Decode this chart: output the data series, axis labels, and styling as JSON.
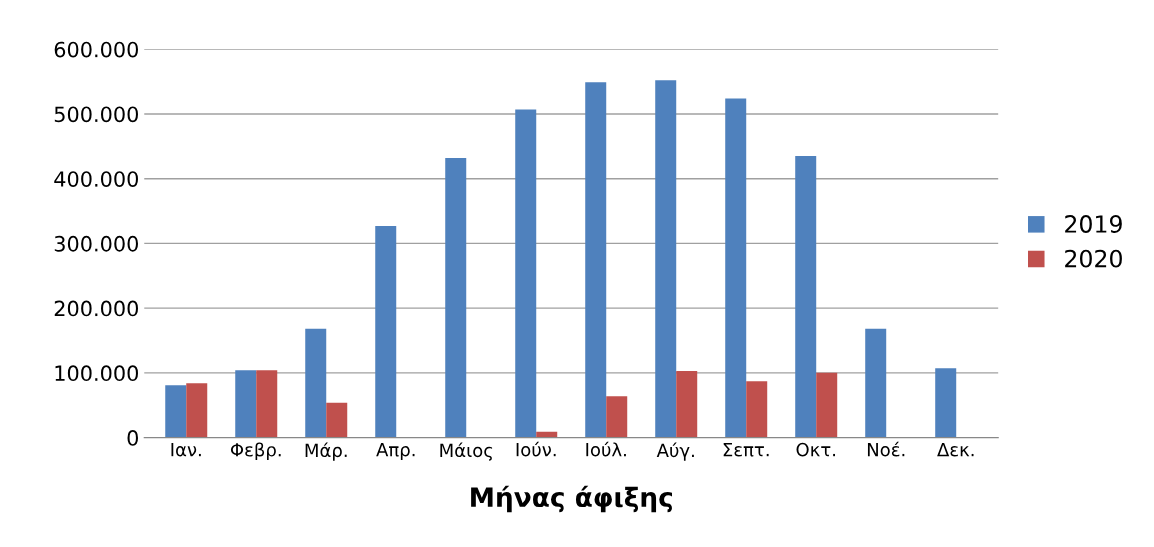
{
  "chart_data": {
    "type": "bar",
    "xlabel": "Μήνας άφιξης",
    "categories": [
      "Ιαν.",
      "Φεβρ.",
      "Μάρ.",
      "Απρ.",
      "Μάιος",
      "Ιούν.",
      "Ιούλ.",
      "Αύγ.",
      "Σεπτ.",
      "Οκτ.",
      "Νοέ.",
      "Δεκ."
    ],
    "series": [
      {
        "name": "2019",
        "color": "#4f81bd",
        "values": [
          81000,
          104000,
          168000,
          327000,
          432000,
          507000,
          549000,
          552000,
          524000,
          435000,
          168000,
          107000
        ]
      },
      {
        "name": "2020",
        "color": "#c0504d",
        "values": [
          84000,
          104000,
          54000,
          0,
          0,
          9000,
          64000,
          103000,
          87000,
          100000,
          null,
          null
        ]
      }
    ],
    "ylim": [
      0,
      600000
    ],
    "yticks": [
      {
        "value": 0,
        "label": "0"
      },
      {
        "value": 100000,
        "label": "100.000"
      },
      {
        "value": 200000,
        "label": "200.000"
      },
      {
        "value": 300000,
        "label": "300.000"
      },
      {
        "value": 400000,
        "label": "400.000"
      },
      {
        "value": 500000,
        "label": "500.000"
      },
      {
        "value": 600000,
        "label": "600.000"
      }
    ],
    "grid": "y",
    "legend": "right"
  }
}
